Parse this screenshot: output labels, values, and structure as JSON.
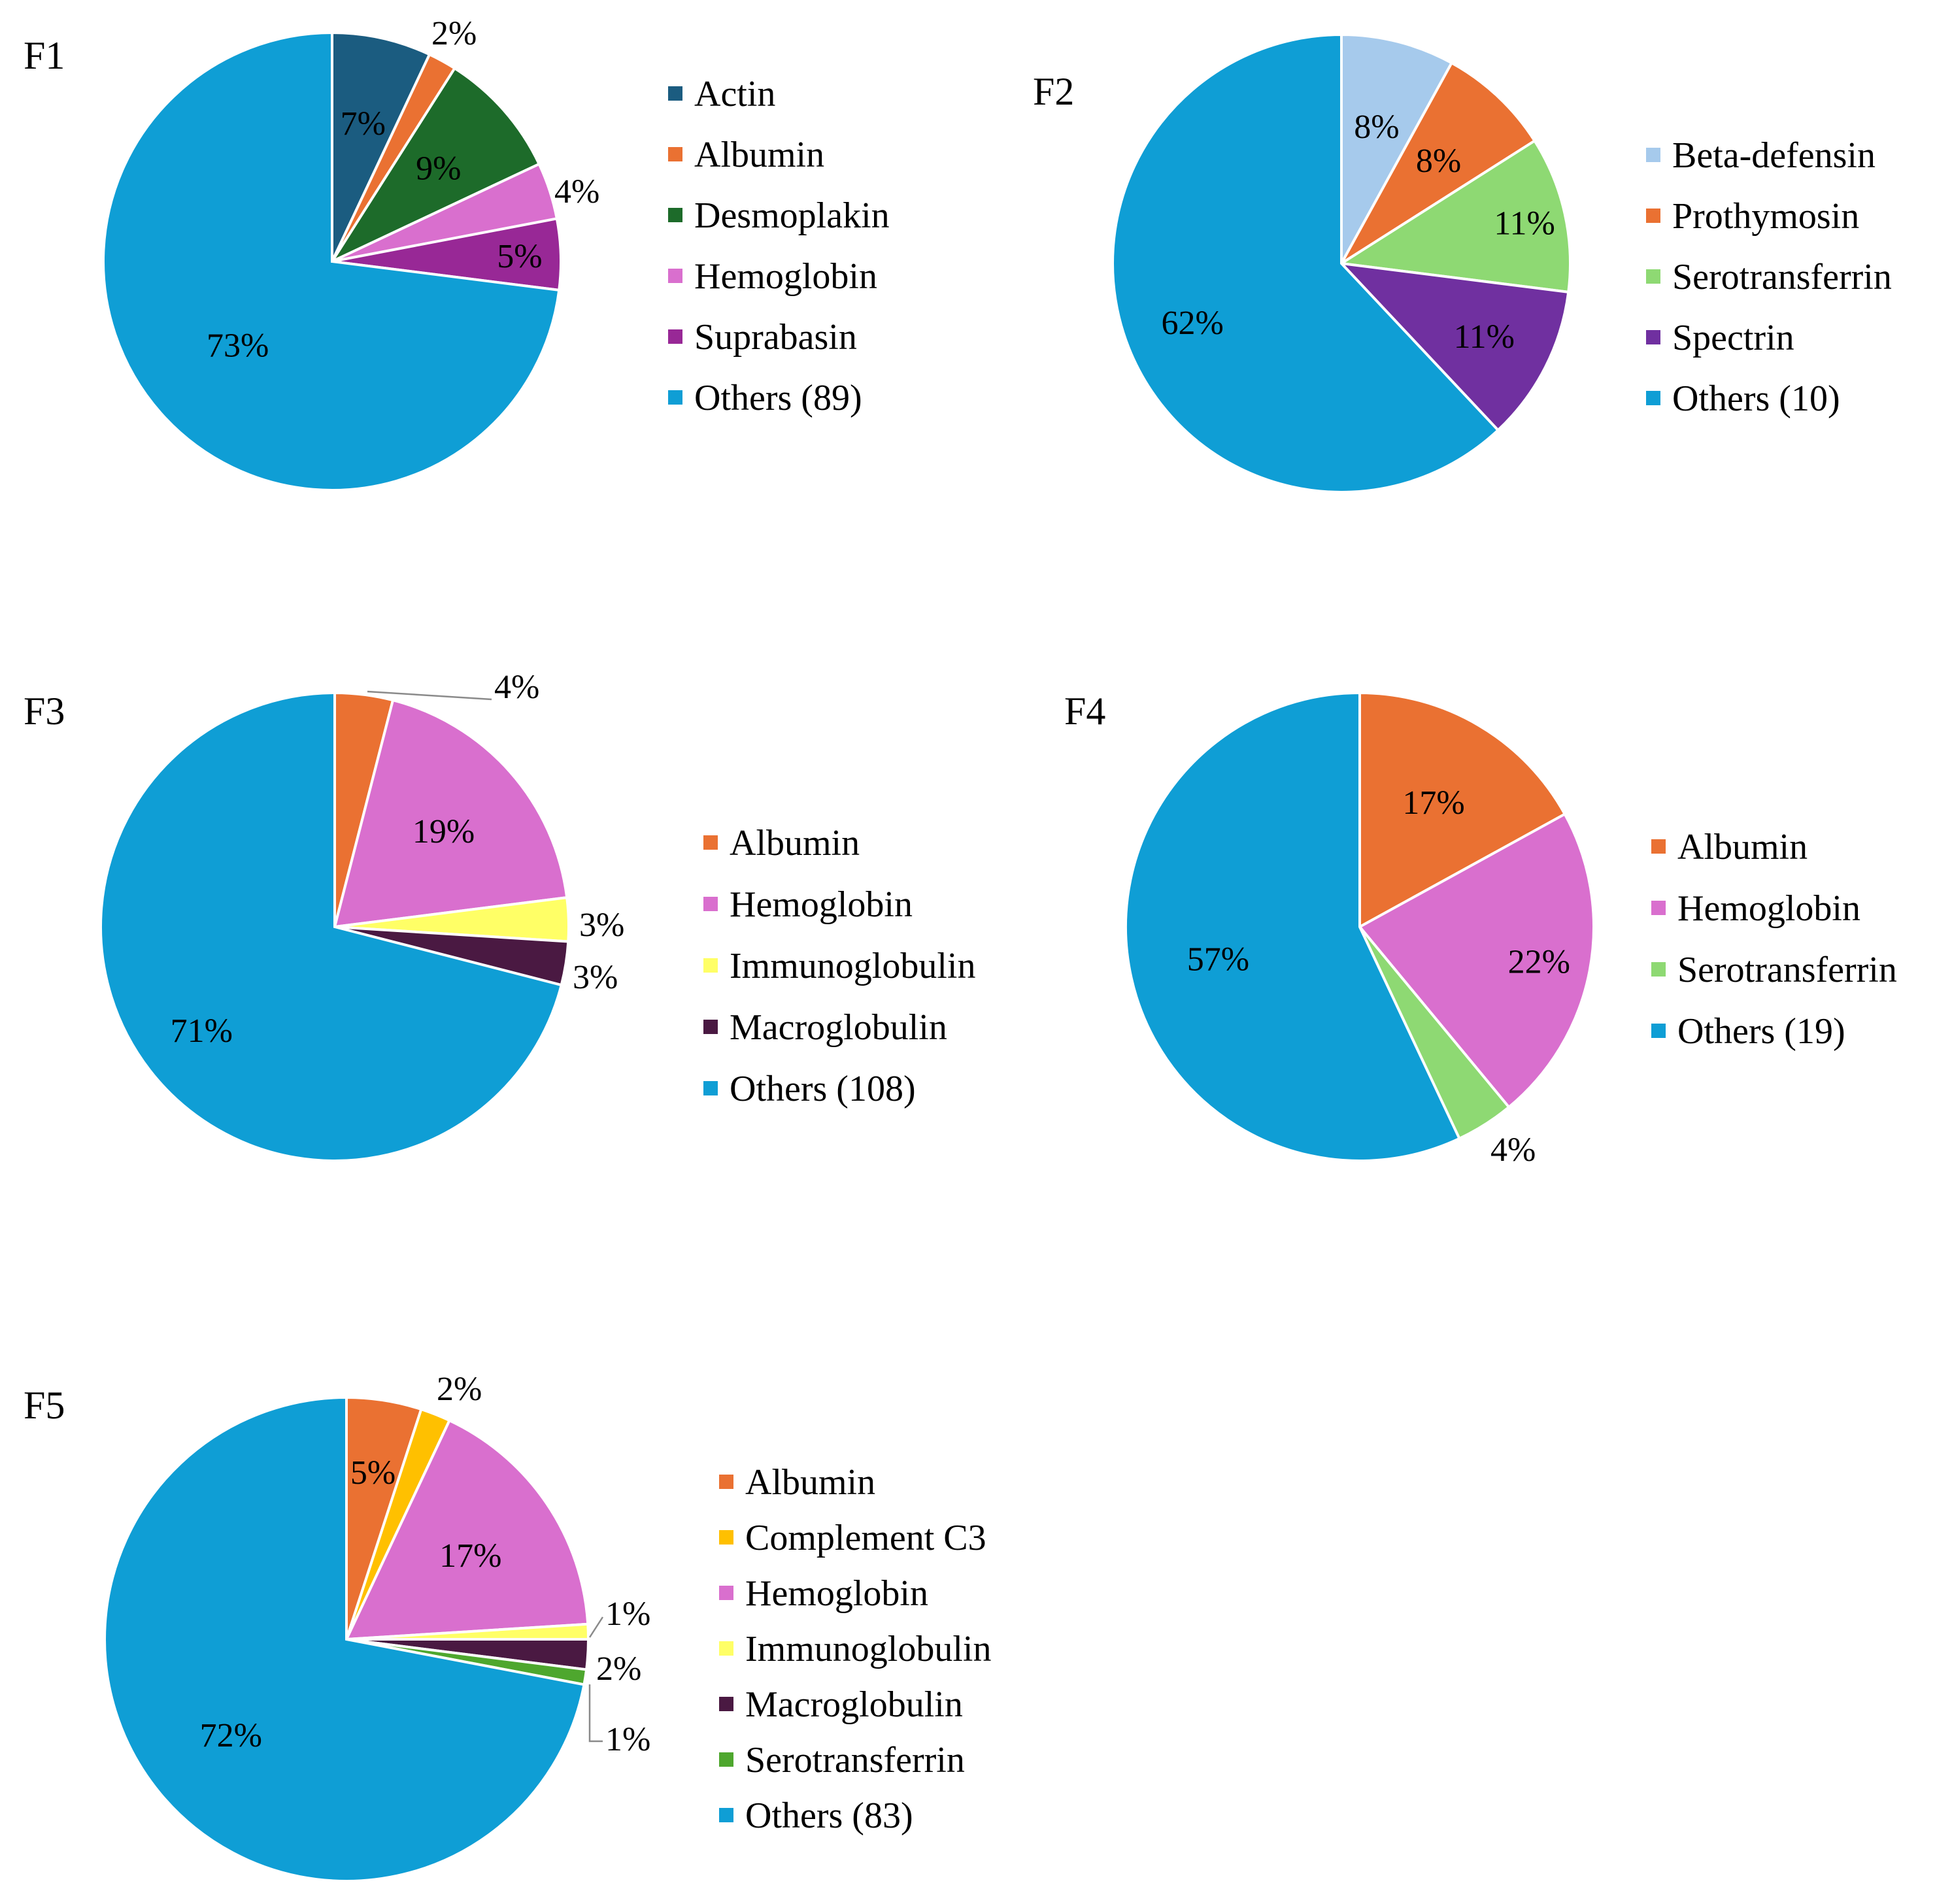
{
  "chart_data": [
    {
      "type": "pie",
      "panel": "F1",
      "slices": [
        {
          "label": "Actin",
          "value": 7,
          "display": "7%",
          "color": "#1b5c80"
        },
        {
          "label": "Albumin",
          "value": 2,
          "display": "2%",
          "color": "#ea7132"
        },
        {
          "label": "Desmoplakin",
          "value": 9,
          "display": "9%",
          "color": "#1d6b2a"
        },
        {
          "label": "Hemoglobin",
          "value": 4,
          "display": "4%",
          "color": "#d96fce"
        },
        {
          "label": "Suprabasin",
          "value": 5,
          "display": "5%",
          "color": "#982896"
        },
        {
          "label": "Others (89)",
          "value": 73,
          "display": "73%",
          "color": "#0f9ed5"
        }
      ]
    },
    {
      "type": "pie",
      "panel": "F2",
      "slices": [
        {
          "label": "Beta-defensin",
          "value": 8,
          "display": "8%",
          "color": "#a6caec"
        },
        {
          "label": "Prothymosin",
          "value": 8,
          "display": "8%",
          "color": "#ea7132"
        },
        {
          "label": "Serotransferrin",
          "value": 11,
          "display": "11%",
          "color": "#8ed973"
        },
        {
          "label": "Spectrin",
          "value": 11,
          "display": "11%",
          "color": "#7030a0"
        },
        {
          "label": "Others (10)",
          "value": 62,
          "display": "62%",
          "color": "#0f9ed5"
        }
      ]
    },
    {
      "type": "pie",
      "panel": "F3",
      "slices": [
        {
          "label": "Albumin",
          "value": 4,
          "display": "4%",
          "color": "#ea7132"
        },
        {
          "label": "Hemoglobin",
          "value": 19,
          "display": "19%",
          "color": "#d96fce"
        },
        {
          "label": "Immunoglobulin",
          "value": 3,
          "display": "3%",
          "color": "#ffff66"
        },
        {
          "label": "Macroglobulin",
          "value": 3,
          "display": "3%",
          "color": "#4a1942"
        },
        {
          "label": "Others (108)",
          "value": 71,
          "display": "71%",
          "color": "#0f9ed5"
        }
      ]
    },
    {
      "type": "pie",
      "panel": "F4",
      "slices": [
        {
          "label": "Albumin",
          "value": 17,
          "display": "17%",
          "color": "#ea7132"
        },
        {
          "label": "Hemoglobin",
          "value": 22,
          "display": "22%",
          "color": "#d96fce"
        },
        {
          "label": "Serotransferrin",
          "value": 4,
          "display": "4%",
          "color": "#8ed973"
        },
        {
          "label": "Others (19)",
          "value": 57,
          "display": "57%",
          "color": "#0f9ed5"
        }
      ]
    },
    {
      "type": "pie",
      "panel": "F5",
      "slices": [
        {
          "label": "Albumin",
          "value": 5,
          "display": "5%",
          "color": "#ea7132"
        },
        {
          "label": "Complement C3",
          "value": 2,
          "display": "2%",
          "color": "#ffc000"
        },
        {
          "label": "Hemoglobin",
          "value": 17,
          "display": "17%",
          "color": "#d96fce"
        },
        {
          "label": "Immunoglobulin",
          "value": 1,
          "display": "1%",
          "color": "#ffff66"
        },
        {
          "label": "Macroglobulin",
          "value": 2,
          "display": "2%",
          "color": "#4a1942"
        },
        {
          "label": "Serotransferrin",
          "value": 1,
          "display": "1%",
          "color": "#4ea72e"
        },
        {
          "label": "Others (83)",
          "value": 72,
          "display": "72%",
          "color": "#0f9ed5"
        }
      ]
    }
  ]
}
